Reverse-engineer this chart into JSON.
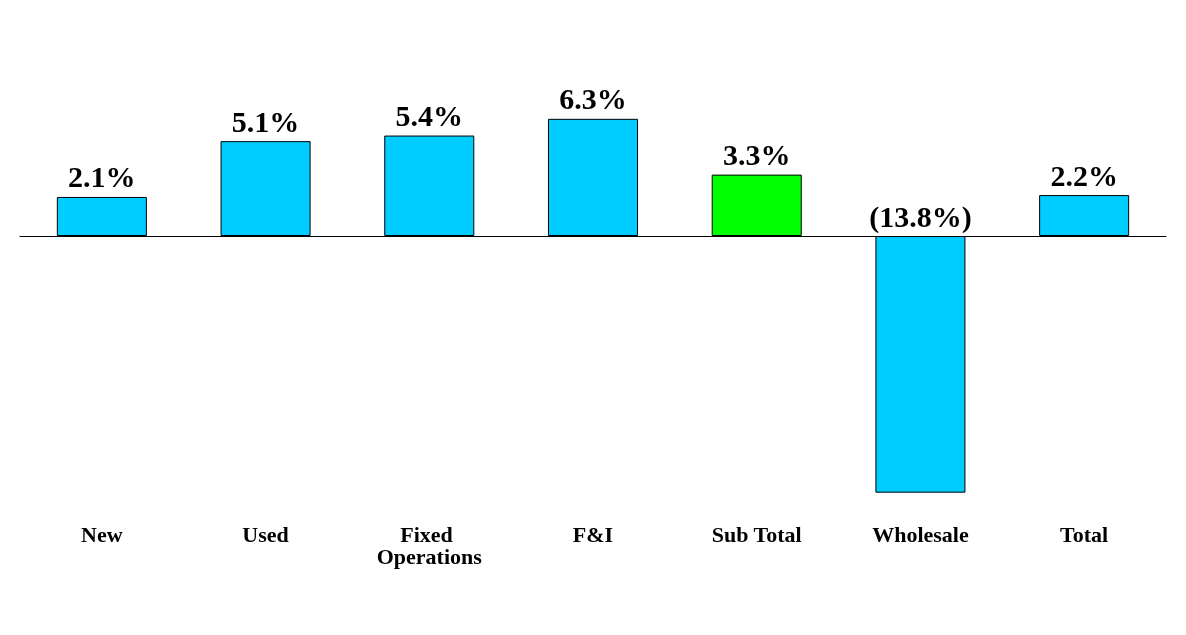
{
  "chart_data": {
    "type": "bar",
    "categories": [
      "New",
      "Used",
      "Fixed Operations",
      "F&I",
      "Sub Total",
      "Wholesale",
      "Total"
    ],
    "values": [
      2.1,
      5.1,
      5.4,
      6.3,
      3.3,
      -13.8,
      2.2
    ],
    "colors": [
      "#00ccff",
      "#00ccff",
      "#00ccff",
      "#00ccff",
      "#00ff00",
      "#00ccff",
      "#00ccff"
    ],
    "value_labels": [
      "2.1%",
      "5.1%",
      "5.4%",
      "6.3%",
      "3.3%",
      "(13.8%)",
      "2.2%"
    ]
  }
}
